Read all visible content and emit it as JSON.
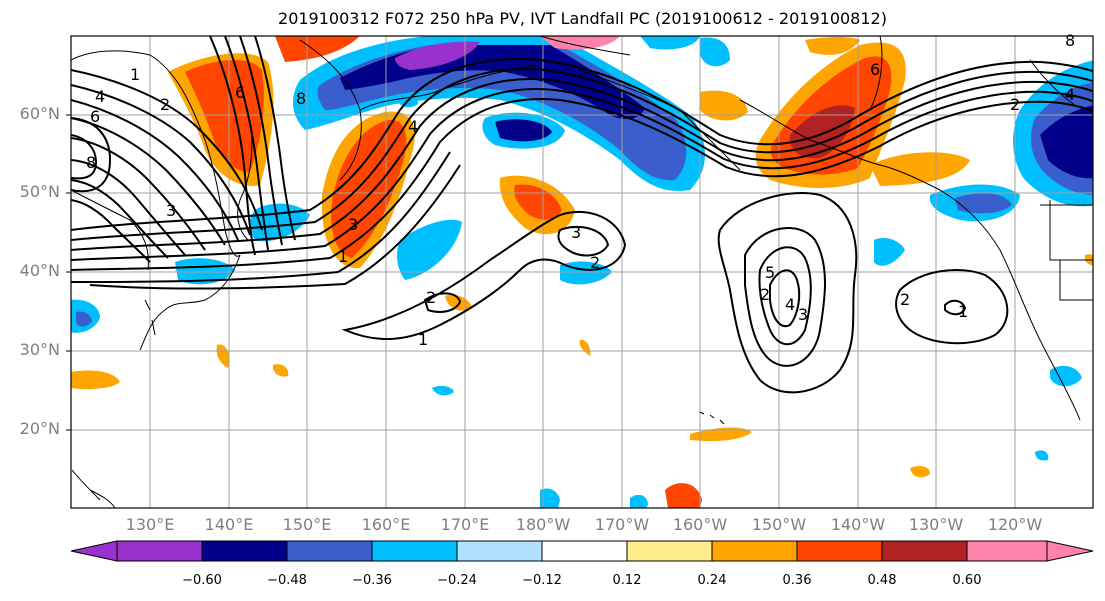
{
  "title": "2019100312 F072 250 hPa PV, IVT Landfall PC (2019100612 - 2019100812)",
  "lat_labels": [
    "60°N",
    "50°N",
    "40°N",
    "30°N",
    "20°N"
  ],
  "lon_labels": [
    "130°E",
    "140°E",
    "150°E",
    "160°E",
    "170°E",
    "180°W",
    "170°W",
    "160°W",
    "150°W",
    "140°W",
    "130°W",
    "120°W"
  ],
  "colorbar": {
    "ticks": [
      "−0.60",
      "−0.48",
      "−0.36",
      "−0.24",
      "−0.12",
      "0.12",
      "0.24",
      "0.36",
      "0.48",
      "0.60"
    ],
    "colors": [
      "#9932cc",
      "#00008b",
      "#3a5fcd",
      "#00bfff",
      "#b0e2ff",
      "#ffffff",
      "#ffec8b",
      "#ffa500",
      "#ff4500",
      "#b22222",
      "#ff82ab"
    ]
  },
  "contour_labels": [
    "4",
    "6",
    "8",
    "2",
    "1",
    "3",
    "6",
    "8",
    "4",
    "3",
    "1",
    "3",
    "2",
    "2",
    "1",
    "2",
    "5",
    "4",
    "3",
    "2",
    "1",
    "2",
    "4",
    "6",
    "8"
  ],
  "shading_colors": {
    "purple": "#9932cc",
    "navy": "#00008b",
    "royal": "#3a5fcd",
    "sky": "#00bfff",
    "light": "#b0e2ff",
    "yellow": "#ffec8b",
    "orange": "#ffa500",
    "redorange": "#ff4500",
    "brick": "#b22222",
    "pink": "#ff82ab"
  }
}
